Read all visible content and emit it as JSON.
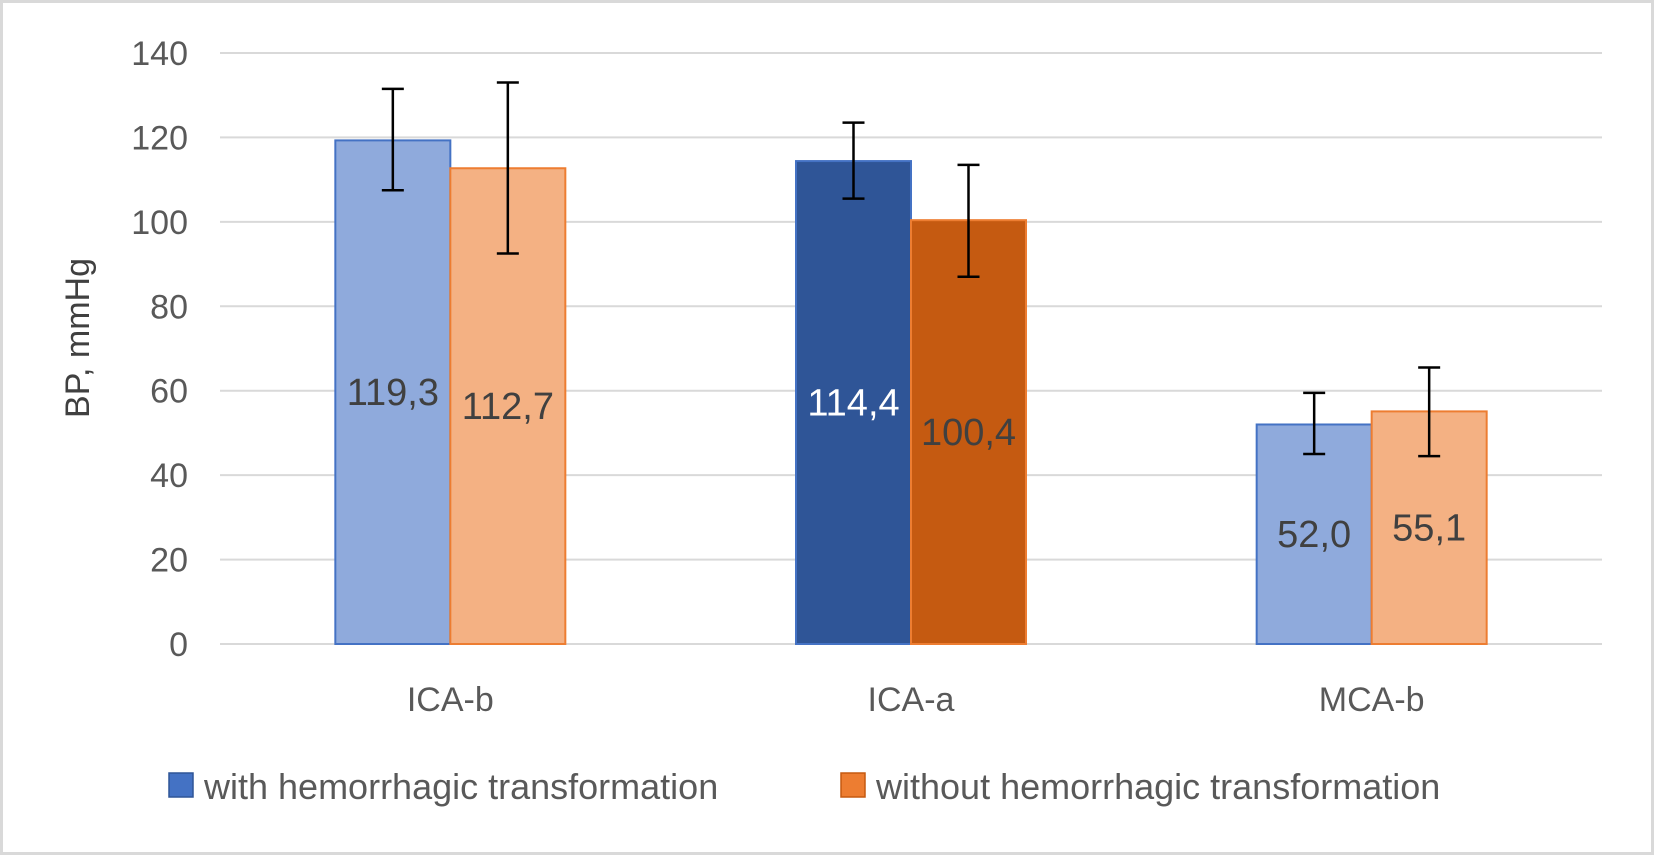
{
  "chart_data": {
    "type": "bar",
    "title": "",
    "xlabel": "",
    "ylabel": "BP, mmHg",
    "ylim": [
      0,
      140
    ],
    "yticks": [
      0,
      20,
      40,
      60,
      80,
      100,
      120,
      140
    ],
    "ytick_labels": [
      "0",
      "20",
      "40",
      "60",
      "80",
      "100",
      "120",
      "140"
    ],
    "grid": true,
    "legend_position": "bottom",
    "categories": [
      "ICA-b",
      "ICA-a",
      "MCA-b"
    ],
    "series": [
      {
        "name": "with hemorrhagic transformation",
        "legend_color": "#4472c4",
        "values": [
          119.3,
          114.4,
          52.0
        ],
        "labels": [
          "119,3",
          "114,4",
          "52,0"
        ],
        "error_low": [
          107.5,
          105.5,
          45.0
        ],
        "error_high": [
          131.5,
          123.5,
          59.5
        ],
        "fill_colors": [
          "#8faadc",
          "#2f5597",
          "#8faadc"
        ],
        "label_colors": [
          "#404040",
          "#ffffff",
          "#404040"
        ]
      },
      {
        "name": "without hemorrhagic transformation",
        "legend_color": "#ed7d31",
        "values": [
          112.7,
          100.4,
          55.1
        ],
        "labels": [
          "112,7",
          "100,4",
          "55,1"
        ],
        "error_low": [
          92.5,
          87.0,
          44.5
        ],
        "error_high": [
          133.0,
          113.5,
          65.5
        ],
        "fill_colors": [
          "#f4b183",
          "#c55a11",
          "#f4b183"
        ],
        "label_colors": [
          "#404040",
          "#404040",
          "#404040"
        ]
      }
    ]
  }
}
